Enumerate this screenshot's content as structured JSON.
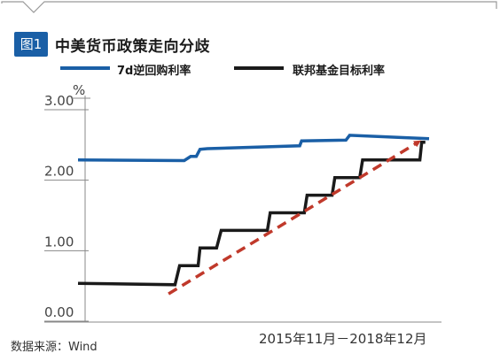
{
  "header": {
    "badge": "图1",
    "title": "中美货币政策走向分歧"
  },
  "colors": {
    "badge": "#1a5fa6",
    "series_blue": "#1a5fa6",
    "series_black": "#1a1a1a",
    "trend": "#c0392b",
    "frame": "#999999",
    "axis": "#888888"
  },
  "chart_data": {
    "type": "line",
    "title": "中美货币政策走向分歧",
    "unit": "%",
    "xlim": [
      0,
      38
    ],
    "ylim": [
      0,
      3
    ],
    "yticks": [
      "3.00",
      "2.00",
      "1.00",
      "0.00"
    ],
    "ytick_values": [
      3,
      2,
      1,
      0
    ],
    "grid": false,
    "legend_position": "top-left",
    "x_range_label": "2015年11月－2018年12月",
    "series": [
      {
        "name": "7d逆回购利率",
        "color": "#1a5fa6",
        "points": [
          [
            0,
            2.25
          ],
          [
            11.5,
            2.24
          ],
          [
            12.2,
            2.3
          ],
          [
            12.8,
            2.3
          ],
          [
            13.2,
            2.4
          ],
          [
            14.0,
            2.41
          ],
          [
            24,
            2.45
          ],
          [
            24.2,
            2.52
          ],
          [
            29,
            2.53
          ],
          [
            29.4,
            2.6
          ],
          [
            38,
            2.55
          ]
        ]
      },
      {
        "name": "联邦基金目标利率",
        "color": "#1a1a1a",
        "points": [
          [
            0,
            0.5
          ],
          [
            10.5,
            0.48
          ],
          [
            11.0,
            0.75
          ],
          [
            13.0,
            0.75
          ],
          [
            13.2,
            1.0
          ],
          [
            15.0,
            1.0
          ],
          [
            15.5,
            1.25
          ],
          [
            20.5,
            1.25
          ],
          [
            20.8,
            1.5
          ],
          [
            24.5,
            1.5
          ],
          [
            24.8,
            1.75
          ],
          [
            27.5,
            1.75
          ],
          [
            27.8,
            2.0
          ],
          [
            30.5,
            2.0
          ],
          [
            30.8,
            2.25
          ],
          [
            37.0,
            2.25
          ],
          [
            37.2,
            2.5
          ],
          [
            37.6,
            2.5
          ]
        ]
      },
      {
        "name": "",
        "style": "dashed-arrow",
        "color": "#c0392b",
        "points": [
          [
            9.8,
            0.35
          ],
          [
            36.8,
            2.5
          ]
        ]
      }
    ]
  },
  "footer": {
    "source": "数据来源：Wind",
    "range": "2015年11月－2018年12月"
  }
}
